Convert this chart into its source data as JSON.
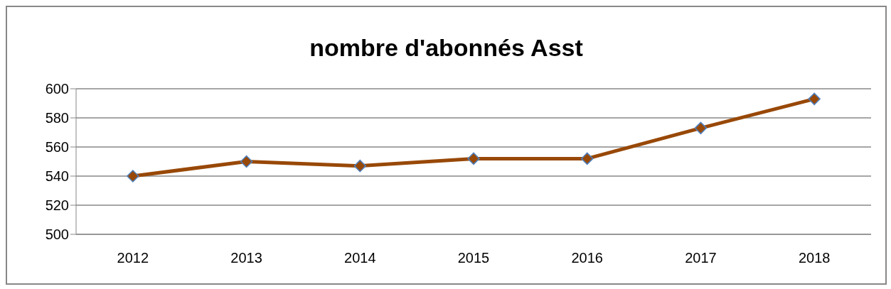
{
  "chart_data": {
    "type": "line",
    "title": "nombre d'abonnés Asst",
    "categories": [
      "2012",
      "2013",
      "2014",
      "2015",
      "2016",
      "2017",
      "2018"
    ],
    "series": [
      {
        "color": "#984807",
        "values": [
          540,
          550,
          547,
          552,
          552,
          573,
          593
        ]
      }
    ],
    "ylim": [
      500,
      600
    ],
    "yticks": [
      500,
      520,
      540,
      560,
      580,
      600
    ],
    "grid": "y",
    "legend": false,
    "marker": "diamond",
    "line_style": "solid"
  }
}
